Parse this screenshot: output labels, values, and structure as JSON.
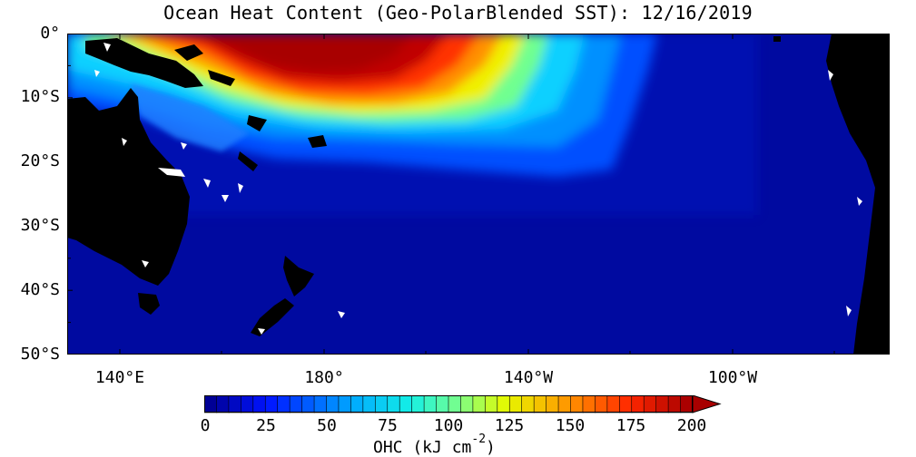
{
  "title": "Ocean Heat Content (Geo-PolarBlended SST): 12/16/2019",
  "map": {
    "lat_labels": [
      "0°",
      "10°S",
      "20°S",
      "30°S",
      "40°S",
      "50°S"
    ],
    "lon_labels": [
      "140°E",
      "180°",
      "140°W",
      "100°W"
    ],
    "colors": {
      "ocean_low": "#000aa0",
      "land": "#000000",
      "gap": "#ffffff",
      "hot": "#a80000"
    }
  },
  "colorbar": {
    "ticks": [
      "0",
      "25",
      "50",
      "75",
      "100",
      "125",
      "150",
      "175",
      "200"
    ],
    "label_main": "OHC (kJ cm",
    "label_exp": "-2",
    "label_close": ")",
    "range": [
      0,
      200
    ],
    "extend": "max"
  }
}
